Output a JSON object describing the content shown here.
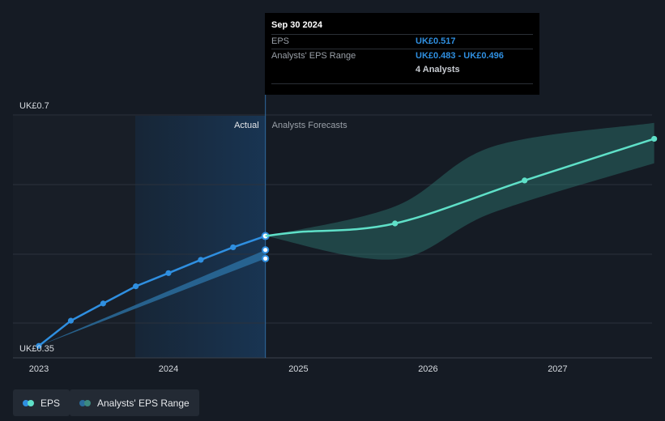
{
  "chart_data": {
    "type": "line",
    "title": "",
    "y_axis": {
      "top_label": "UK£0.7",
      "bottom_label": "UK£0.35",
      "range": [
        0.35,
        0.7
      ]
    },
    "x_axis": {
      "ticks": [
        "2023",
        "2024",
        "2025",
        "2026",
        "2027"
      ]
    },
    "region_labels": {
      "actual": "Actual",
      "forecast": "Analysts Forecasts"
    },
    "series": [
      {
        "name": "EPS",
        "color": "#2f8fe0",
        "points": [
          [
            "2023-01-01",
            0.351
          ],
          [
            "2023-04-01",
            0.389
          ],
          [
            "2023-07-01",
            0.415
          ],
          [
            "2023-10-01",
            0.441
          ],
          [
            "2024-01-01",
            0.461
          ],
          [
            "2024-04-01",
            0.481
          ],
          [
            "2024-07-01",
            0.5
          ],
          [
            "2024-09-30",
            0.517
          ]
        ]
      },
      {
        "name": "Forecast",
        "color": "#5fe0c8",
        "points": [
          [
            "2024-09-30",
            0.517
          ],
          [
            "2025-01-01",
            0.523
          ],
          [
            "2025-09-30",
            0.536
          ],
          [
            "2026-09-30",
            0.601
          ],
          [
            "2027-09-30",
            0.664
          ]
        ]
      }
    ],
    "forecast_range": {
      "name": "Analysts' EPS Range",
      "x": [
        "2024-09-30",
        "2025-10-01",
        "2026-07-01",
        "2027-09-30"
      ],
      "low": [
        0.517,
        0.482,
        0.552,
        0.627
      ],
      "high": [
        0.517,
        0.562,
        0.652,
        0.688
      ]
    },
    "actual_range_band": {
      "x": [
        "2023-01-01",
        "2024-09-30"
      ],
      "low": [
        0.351,
        0.483
      ],
      "high": [
        0.351,
        0.496
      ]
    },
    "grid": true
  },
  "tooltip": {
    "date": "Sep 30 2024",
    "eps_label": "EPS",
    "eps_value": "UK£0.517",
    "range_label": "Analysts' EPS Range",
    "range_value": "UK£0.483 - UK£0.496",
    "analysts": "4 Analysts"
  },
  "legend": {
    "eps_label": "EPS",
    "range_label": "Analysts' EPS Range",
    "eps_colors": [
      "#2f8fe0",
      "#5fe0c8"
    ],
    "range_colors": [
      "#2a6c9c",
      "#3c8a80"
    ]
  }
}
